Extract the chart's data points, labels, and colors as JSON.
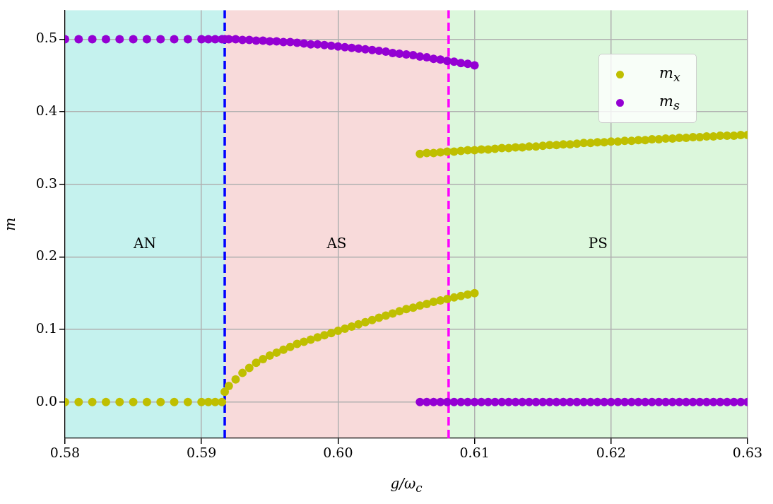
{
  "chart_data": {
    "type": "scatter",
    "xlabel": "g/ω$_{c}$",
    "ylabel": "m",
    "xlim": [
      0.58,
      0.63
    ],
    "ylim": [
      -0.05,
      0.54
    ],
    "xticks": [
      {
        "value": 0.58,
        "label": "0.58"
      },
      {
        "value": 0.59,
        "label": "0.59"
      },
      {
        "value": 0.6,
        "label": "0.60"
      },
      {
        "value": 0.61,
        "label": "0.61"
      },
      {
        "value": 0.62,
        "label": "0.62"
      },
      {
        "value": 0.63,
        "label": "0.63"
      }
    ],
    "yticks": [
      {
        "value": 0,
        "label": "0.0"
      },
      {
        "value": 0.1,
        "label": "0.1"
      },
      {
        "value": 0.2,
        "label": "0.2"
      },
      {
        "value": 0.3,
        "label": "0.3"
      },
      {
        "value": 0.4,
        "label": "0.4"
      },
      {
        "value": 0.5,
        "label": "0.5"
      }
    ],
    "grid": true,
    "legend": "top right",
    "marker": "circle",
    "bands": [
      {
        "axis": "x",
        "from": 0.58,
        "to": 0.5917,
        "color": "#c5f2ee",
        "label": "AN"
      },
      {
        "axis": "x",
        "from": 0.5917,
        "to": 0.6081,
        "color": "#f8dada",
        "label": "AS"
      },
      {
        "axis": "x",
        "from": 0.6081,
        "to": 0.63,
        "color": "#dcf7dc",
        "label": "PS"
      }
    ],
    "ref_lines": [
      {
        "axis": "x",
        "value": 0.5917,
        "color": "#0000ff",
        "line_style": "dashed"
      },
      {
        "axis": "x",
        "value": 0.6081,
        "color": "#ff00ff",
        "line_style": "dashed"
      }
    ],
    "series": [
      {
        "name": "m$_{x}$",
        "color": "#bfbf00",
        "x": [
          0.58,
          0.581,
          0.582,
          0.583,
          0.584,
          0.585,
          0.586,
          0.587,
          0.588,
          0.589,
          0.59,
          0.5905,
          0.591,
          0.5915,
          0.5917,
          0.592,
          0.5925,
          0.593,
          0.5935,
          0.594,
          0.5945,
          0.595,
          0.5955,
          0.596,
          0.5965,
          0.597,
          0.5975,
          0.598,
          0.5985,
          0.599,
          0.5995,
          0.6,
          0.6005,
          0.601,
          0.6015,
          0.602,
          0.6025,
          0.603,
          0.6035,
          0.604,
          0.6045,
          0.605,
          0.6055,
          0.606,
          0.6065,
          0.607,
          0.6075,
          0.608,
          0.6085,
          0.609,
          0.6095,
          0.61,
          0.606,
          0.6065,
          0.607,
          0.6075,
          0.608,
          0.6085,
          0.609,
          0.6095,
          0.61,
          0.6105,
          0.611,
          0.6115,
          0.612,
          0.6125,
          0.613,
          0.6135,
          0.614,
          0.6145,
          0.615,
          0.6155,
          0.616,
          0.6165,
          0.617,
          0.6175,
          0.618,
          0.6185,
          0.619,
          0.6195,
          0.62,
          0.6205,
          0.621,
          0.6215,
          0.622,
          0.6225,
          0.623,
          0.6235,
          0.624,
          0.6245,
          0.625,
          0.6255,
          0.626,
          0.6265,
          0.627,
          0.6275,
          0.628,
          0.6285,
          0.629,
          0.6295,
          0.63
        ],
        "values": [
          0,
          0,
          0,
          0,
          0,
          0,
          0,
          0,
          0,
          0,
          0,
          0,
          0,
          0,
          0.014,
          0.022,
          0.031,
          0.04,
          0.047,
          0.054,
          0.059,
          0.064,
          0.068,
          0.072,
          0.076,
          0.08,
          0.083,
          0.086,
          0.089,
          0.092,
          0.095,
          0.098,
          0.101,
          0.104,
          0.107,
          0.11,
          0.113,
          0.116,
          0.119,
          0.122,
          0.125,
          0.128,
          0.13,
          0.133,
          0.135,
          0.138,
          0.14,
          0.142,
          0.144,
          0.146,
          0.148,
          0.15,
          0.342,
          0.343,
          0.343,
          0.344,
          0.345,
          0.345,
          0.346,
          0.347,
          0.347,
          0.348,
          0.348,
          0.349,
          0.35,
          0.35,
          0.351,
          0.351,
          0.352,
          0.352,
          0.353,
          0.354,
          0.354,
          0.355,
          0.355,
          0.356,
          0.357,
          0.357,
          0.358,
          0.358,
          0.359,
          0.359,
          0.36,
          0.36,
          0.361,
          0.361,
          0.362,
          0.362,
          0.363,
          0.363,
          0.364,
          0.364,
          0.365,
          0.365,
          0.366,
          0.366,
          0.367,
          0.367,
          0.367,
          0.368,
          0.368
        ]
      },
      {
        "name": "m$_{s}$",
        "color": "#9400d3",
        "x": [
          0.58,
          0.581,
          0.582,
          0.583,
          0.584,
          0.585,
          0.586,
          0.587,
          0.588,
          0.589,
          0.59,
          0.5905,
          0.591,
          0.5915,
          0.5917,
          0.592,
          0.5925,
          0.593,
          0.5935,
          0.594,
          0.5945,
          0.595,
          0.5955,
          0.596,
          0.5965,
          0.597,
          0.5975,
          0.598,
          0.5985,
          0.599,
          0.5995,
          0.6,
          0.6005,
          0.601,
          0.6015,
          0.602,
          0.6025,
          0.603,
          0.6035,
          0.604,
          0.6045,
          0.605,
          0.6055,
          0.606,
          0.6065,
          0.607,
          0.6075,
          0.608,
          0.6085,
          0.609,
          0.6095,
          0.61,
          0.606,
          0.6065,
          0.607,
          0.6075,
          0.608,
          0.6085,
          0.609,
          0.6095,
          0.61,
          0.6105,
          0.611,
          0.6115,
          0.612,
          0.6125,
          0.613,
          0.6135,
          0.614,
          0.6145,
          0.615,
          0.6155,
          0.616,
          0.6165,
          0.617,
          0.6175,
          0.618,
          0.6185,
          0.619,
          0.6195,
          0.62,
          0.6205,
          0.621,
          0.6215,
          0.622,
          0.6225,
          0.623,
          0.6235,
          0.624,
          0.6245,
          0.625,
          0.6255,
          0.626,
          0.6265,
          0.627,
          0.6275,
          0.628,
          0.6285,
          0.629,
          0.6295,
          0.63
        ],
        "values": [
          0.5,
          0.5,
          0.5,
          0.5,
          0.5,
          0.5,
          0.5,
          0.5,
          0.5,
          0.5,
          0.5,
          0.5,
          0.5,
          0.5,
          0.5,
          0.5,
          0.5,
          0.499,
          0.499,
          0.498,
          0.498,
          0.497,
          0.497,
          0.496,
          0.496,
          0.495,
          0.494,
          0.493,
          0.493,
          0.492,
          0.491,
          0.49,
          0.489,
          0.488,
          0.487,
          0.486,
          0.485,
          0.484,
          0.483,
          0.481,
          0.48,
          0.479,
          0.478,
          0.476,
          0.475,
          0.473,
          0.472,
          0.47,
          0.469,
          0.467,
          0.466,
          0.464,
          0,
          0,
          0,
          0,
          0,
          0,
          0,
          0,
          0,
          0,
          0,
          0,
          0,
          0,
          0,
          0,
          0,
          0,
          0,
          0,
          0,
          0,
          0,
          0,
          0,
          0,
          0,
          0,
          0,
          0,
          0,
          0,
          0,
          0,
          0,
          0,
          0,
          0,
          0,
          0,
          0,
          0,
          0,
          0,
          0,
          0,
          0,
          0,
          0
        ]
      }
    ]
  }
}
